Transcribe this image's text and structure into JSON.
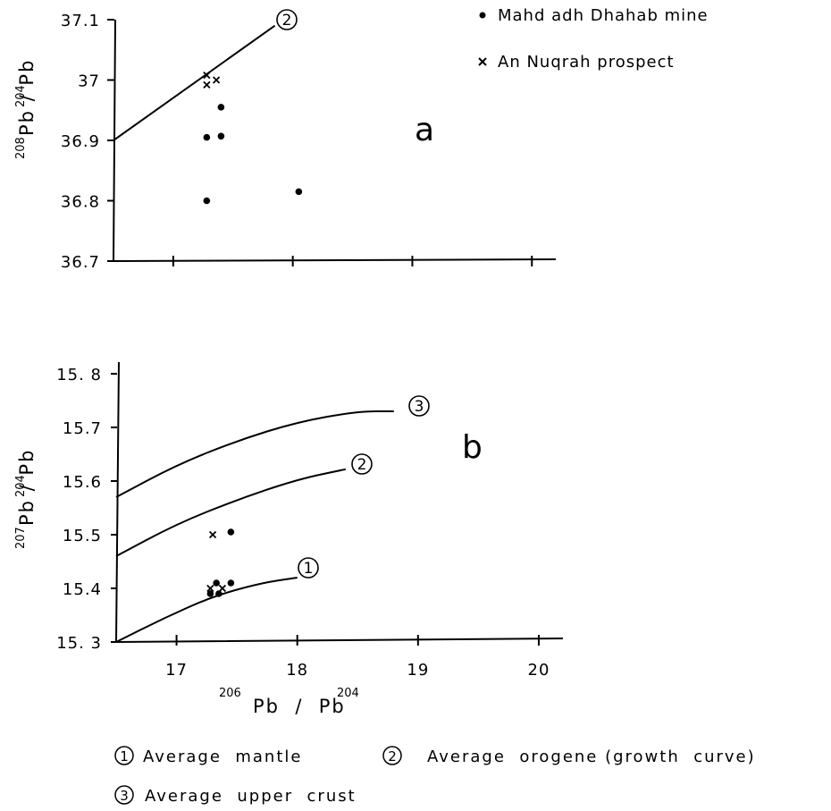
{
  "colors": {
    "ink": "#000000",
    "background": "#ffffff"
  },
  "legend": {
    "mahd": {
      "symbol": "dot",
      "label": "Mahd adh Dhahab mine"
    },
    "nuqrah": {
      "symbol": "x",
      "label": "An Nuqrah prospect"
    }
  },
  "curve_legend": {
    "mantle": {
      "number": "1",
      "label": "Average  mantle"
    },
    "orogene": {
      "number": "2",
      "label": "Average  orogene (growth  curve)"
    },
    "crust": {
      "number": "3",
      "label": "Average  upper  crust"
    }
  },
  "chart_data": [
    {
      "type": "scatter",
      "panel_label": "a",
      "ylabel": {
        "mass_top": "208",
        "mass_bottom": "204",
        "text": "Pb / Pb"
      },
      "ylim": [
        36.7,
        37.1
      ],
      "xlim": [
        16.5,
        20.2
      ],
      "yticks": [
        36.7,
        36.8,
        36.9,
        37.0,
        37.1
      ],
      "ytick_labels": [
        "36.7",
        "36.8",
        "36.9",
        "37",
        "37.1"
      ],
      "xticks": [
        17,
        18,
        19,
        20
      ],
      "series": [
        {
          "name": "Mahd adh Dhahab mine",
          "marker": "dot",
          "points": [
            [
              17.28,
              36.8
            ],
            [
              17.28,
              36.905
            ],
            [
              17.4,
              36.907
            ],
            [
              17.4,
              36.955
            ],
            [
              18.05,
              36.815
            ]
          ]
        },
        {
          "name": "An Nuqrah prospect",
          "marker": "x",
          "points": [
            [
              17.28,
              37.008
            ],
            [
              17.28,
              36.992
            ],
            [
              17.36,
              37.0
            ]
          ]
        }
      ],
      "curves": [
        {
          "id": "2",
          "points": [
            [
              16.5,
              36.9
            ],
            [
              17.85,
              37.09
            ]
          ]
        }
      ]
    },
    {
      "type": "scatter",
      "panel_label": "b",
      "ylabel": {
        "mass_top": "207",
        "mass_bottom": "204",
        "text": "Pb / Pb"
      },
      "xlabel": {
        "mass_left": "206",
        "mass_right": "204",
        "text": "Pb  /  Pb"
      },
      "ylim": [
        15.3,
        15.85
      ],
      "xlim": [
        16.5,
        20.2
      ],
      "yticks": [
        15.3,
        15.4,
        15.5,
        15.6,
        15.7,
        15.8
      ],
      "ytick_labels": [
        "15. 3",
        "15.4",
        "15.5",
        "15.6",
        "15.7",
        "15. 8"
      ],
      "xticks": [
        17,
        18,
        19,
        20
      ],
      "xtick_labels": [
        "17",
        "18",
        "19",
        "20"
      ],
      "series": [
        {
          "name": "Mahd adh Dhahab mine",
          "marker": "dot",
          "points": [
            [
              17.28,
              15.39
            ],
            [
              17.33,
              15.41
            ],
            [
              17.35,
              15.39
            ],
            [
              17.45,
              15.41
            ],
            [
              17.45,
              15.505
            ]
          ]
        },
        {
          "name": "An Nuqrah prospect",
          "marker": "x",
          "points": [
            [
              17.3,
              15.5
            ],
            [
              17.28,
              15.4
            ],
            [
              17.38,
              15.4
            ]
          ]
        }
      ],
      "curves": [
        {
          "id": "1",
          "points": [
            [
              16.5,
              15.3
            ],
            [
              16.9,
              15.345
            ],
            [
              17.3,
              15.385
            ],
            [
              17.7,
              15.41
            ],
            [
              18.0,
              15.42
            ]
          ]
        },
        {
          "id": "2",
          "points": [
            [
              16.5,
              15.46
            ],
            [
              17.0,
              15.52
            ],
            [
              17.5,
              15.565
            ],
            [
              18.0,
              15.603
            ],
            [
              18.4,
              15.622
            ]
          ]
        },
        {
          "id": "3",
          "points": [
            [
              16.5,
              15.57
            ],
            [
              17.0,
              15.63
            ],
            [
              17.5,
              15.675
            ],
            [
              18.0,
              15.71
            ],
            [
              18.5,
              15.73
            ],
            [
              18.8,
              15.73
            ]
          ]
        }
      ]
    }
  ]
}
